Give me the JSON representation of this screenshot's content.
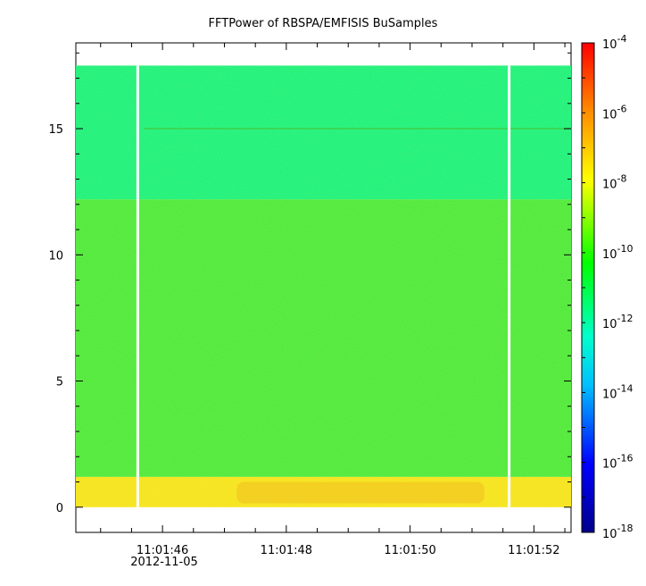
{
  "chart_data": {
    "type": "heatmap",
    "title": "FFTPower of RBSPA/EMFISIS  BuSamples",
    "xlabel": "",
    "ylabel": "",
    "x_ticks": [
      {
        "value": 46,
        "label": "11:01:46"
      },
      {
        "value": 48,
        "label": "11:01:48"
      },
      {
        "value": 50,
        "label": "11:01:50"
      },
      {
        "value": 52,
        "label": "11:01:52"
      }
    ],
    "x_date_label": "2012-11-05",
    "xlim": [
      44.6,
      52.6
    ],
    "y_ticks": [
      0,
      5,
      10,
      15
    ],
    "ylim": [
      -1,
      18.4
    ],
    "data_ylim": [
      0,
      17.5
    ],
    "gaps_at_seconds": [
      45.6,
      51.6
    ],
    "colorbar": {
      "scale": "log",
      "range": [
        1e-18,
        0.0001
      ],
      "tick_exponents": [
        -4,
        -6,
        -8,
        -10,
        -12,
        -14,
        -16,
        -18
      ],
      "tick_base": "10",
      "colors": [
        "#00008b",
        "#0000ff",
        "#00ffff",
        "#00ff00",
        "#ffff00",
        "#ff0000"
      ]
    },
    "bands": [
      {
        "y_from": 0,
        "y_to": 1.2,
        "level_exponent": -8.5,
        "color": "#f5e21a"
      },
      {
        "y_from": 1.2,
        "y_to": 12.2,
        "level_exponent": -10.5,
        "color": "#44e83a"
      },
      {
        "y_from": 12.2,
        "y_to": 17.5,
        "level_exponent": -12.5,
        "color": "#10f07e"
      }
    ],
    "line_at_y": 15
  }
}
